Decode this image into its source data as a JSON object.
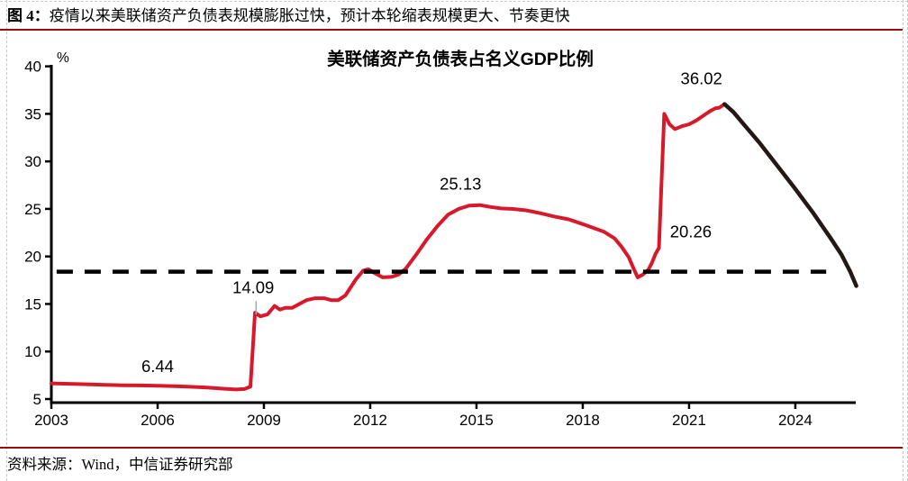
{
  "header": {
    "figure_label": "图 4：",
    "figure_title": "疫情以来美联储资产负债表规模膨胀过快，预计本轮缩表规模更大、节奏更快"
  },
  "footer": {
    "source_text": "资料来源：Wind，中信证券研究部"
  },
  "colors": {
    "caption_rule": "#9e0b0f",
    "actual_line": "#d7192b",
    "forecast_line": "#241815",
    "reference_line": "#000000",
    "axis": "#000000",
    "leader": "#a6a6a6",
    "text": "#000000"
  },
  "chart_data": {
    "type": "line",
    "title": "美联储资产负债表占名义GDP比例",
    "unit_label": "%",
    "xlabel": "",
    "ylabel": "%",
    "ylim": [
      5,
      40
    ],
    "xlim": [
      2003,
      2025.72
    ],
    "yticks": [
      5,
      10,
      15,
      20,
      25,
      30,
      35,
      40
    ],
    "xticks": [
      2003,
      2006,
      2009,
      2012,
      2015,
      2018,
      2021,
      2024
    ],
    "grid": false,
    "legend": "none",
    "reference_line": {
      "value": 18.4,
      "x_start": 2003.15,
      "x_end": 2024.87,
      "style": "dashed"
    },
    "series": [
      {
        "id": "actual",
        "color_key": "actual_line",
        "points": [
          [
            2003.0,
            6.65
          ],
          [
            2003.5,
            6.6
          ],
          [
            2004.0,
            6.55
          ],
          [
            2004.5,
            6.5
          ],
          [
            2005.0,
            6.45
          ],
          [
            2005.5,
            6.43
          ],
          [
            2006.0,
            6.4
          ],
          [
            2006.5,
            6.35
          ],
          [
            2007.0,
            6.28
          ],
          [
            2007.4,
            6.2
          ],
          [
            2007.8,
            6.1
          ],
          [
            2008.2,
            6.0
          ],
          [
            2008.45,
            6.05
          ],
          [
            2008.62,
            6.3
          ],
          [
            2008.75,
            14.09
          ],
          [
            2008.9,
            13.7
          ],
          [
            2009.1,
            13.9
          ],
          [
            2009.3,
            14.8
          ],
          [
            2009.45,
            14.4
          ],
          [
            2009.6,
            14.6
          ],
          [
            2009.8,
            14.6
          ],
          [
            2010.0,
            15.0
          ],
          [
            2010.2,
            15.4
          ],
          [
            2010.45,
            15.6
          ],
          [
            2010.7,
            15.6
          ],
          [
            2010.9,
            15.4
          ],
          [
            2011.1,
            15.4
          ],
          [
            2011.3,
            15.9
          ],
          [
            2011.6,
            17.6
          ],
          [
            2011.8,
            18.5
          ],
          [
            2011.95,
            18.65
          ],
          [
            2012.1,
            18.3
          ],
          [
            2012.35,
            17.8
          ],
          [
            2012.6,
            17.85
          ],
          [
            2012.8,
            18.1
          ],
          [
            2013.0,
            18.7
          ],
          [
            2013.3,
            20.2
          ],
          [
            2013.6,
            21.8
          ],
          [
            2013.9,
            23.2
          ],
          [
            2014.2,
            24.4
          ],
          [
            2014.5,
            25.0
          ],
          [
            2014.8,
            25.35
          ],
          [
            2015.1,
            25.4
          ],
          [
            2015.4,
            25.2
          ],
          [
            2015.7,
            25.05
          ],
          [
            2016.0,
            25.0
          ],
          [
            2016.4,
            24.85
          ],
          [
            2016.8,
            24.55
          ],
          [
            2017.2,
            24.2
          ],
          [
            2017.6,
            23.9
          ],
          [
            2018.0,
            23.4
          ],
          [
            2018.3,
            23.0
          ],
          [
            2018.6,
            22.6
          ],
          [
            2018.9,
            21.9
          ],
          [
            2019.1,
            21.0
          ],
          [
            2019.3,
            19.9
          ],
          [
            2019.45,
            18.6
          ],
          [
            2019.55,
            17.8
          ],
          [
            2019.7,
            18.1
          ],
          [
            2019.85,
            18.6
          ],
          [
            2019.95,
            19.3
          ],
          [
            2020.05,
            20.26
          ],
          [
            2020.15,
            20.9
          ],
          [
            2020.3,
            35.0
          ],
          [
            2020.45,
            33.9
          ],
          [
            2020.6,
            33.4
          ],
          [
            2020.8,
            33.7
          ],
          [
            2021.0,
            33.9
          ],
          [
            2021.2,
            34.3
          ],
          [
            2021.4,
            34.8
          ],
          [
            2021.6,
            35.3
          ],
          [
            2021.75,
            35.6
          ],
          [
            2021.85,
            35.65
          ],
          [
            2022.0,
            36.02
          ]
        ]
      },
      {
        "id": "forecast",
        "color_key": "forecast_line",
        "points": [
          [
            2022.0,
            36.02
          ],
          [
            2022.25,
            35.2
          ],
          [
            2022.5,
            34.1
          ],
          [
            2023.0,
            31.9
          ],
          [
            2023.5,
            29.5
          ],
          [
            2024.0,
            27.1
          ],
          [
            2024.5,
            24.6
          ],
          [
            2025.0,
            21.9
          ],
          [
            2025.3,
            20.2
          ],
          [
            2025.55,
            18.4
          ],
          [
            2025.72,
            16.9
          ]
        ]
      }
    ],
    "annotations": [
      {
        "text": "6.44",
        "x": 2006.0,
        "y": 8.4
      },
      {
        "text": "14.09",
        "x": 2008.7,
        "y": 16.7,
        "leader": {
          "x": 2008.78,
          "y1": 15.3,
          "y2": 13.9
        }
      },
      {
        "text": "25.13",
        "x": 2014.55,
        "y": 27.6
      },
      {
        "text": "20.26",
        "x": 2021.05,
        "y": 22.6
      },
      {
        "text": "36.02",
        "x": 2021.35,
        "y": 38.7
      }
    ]
  }
}
